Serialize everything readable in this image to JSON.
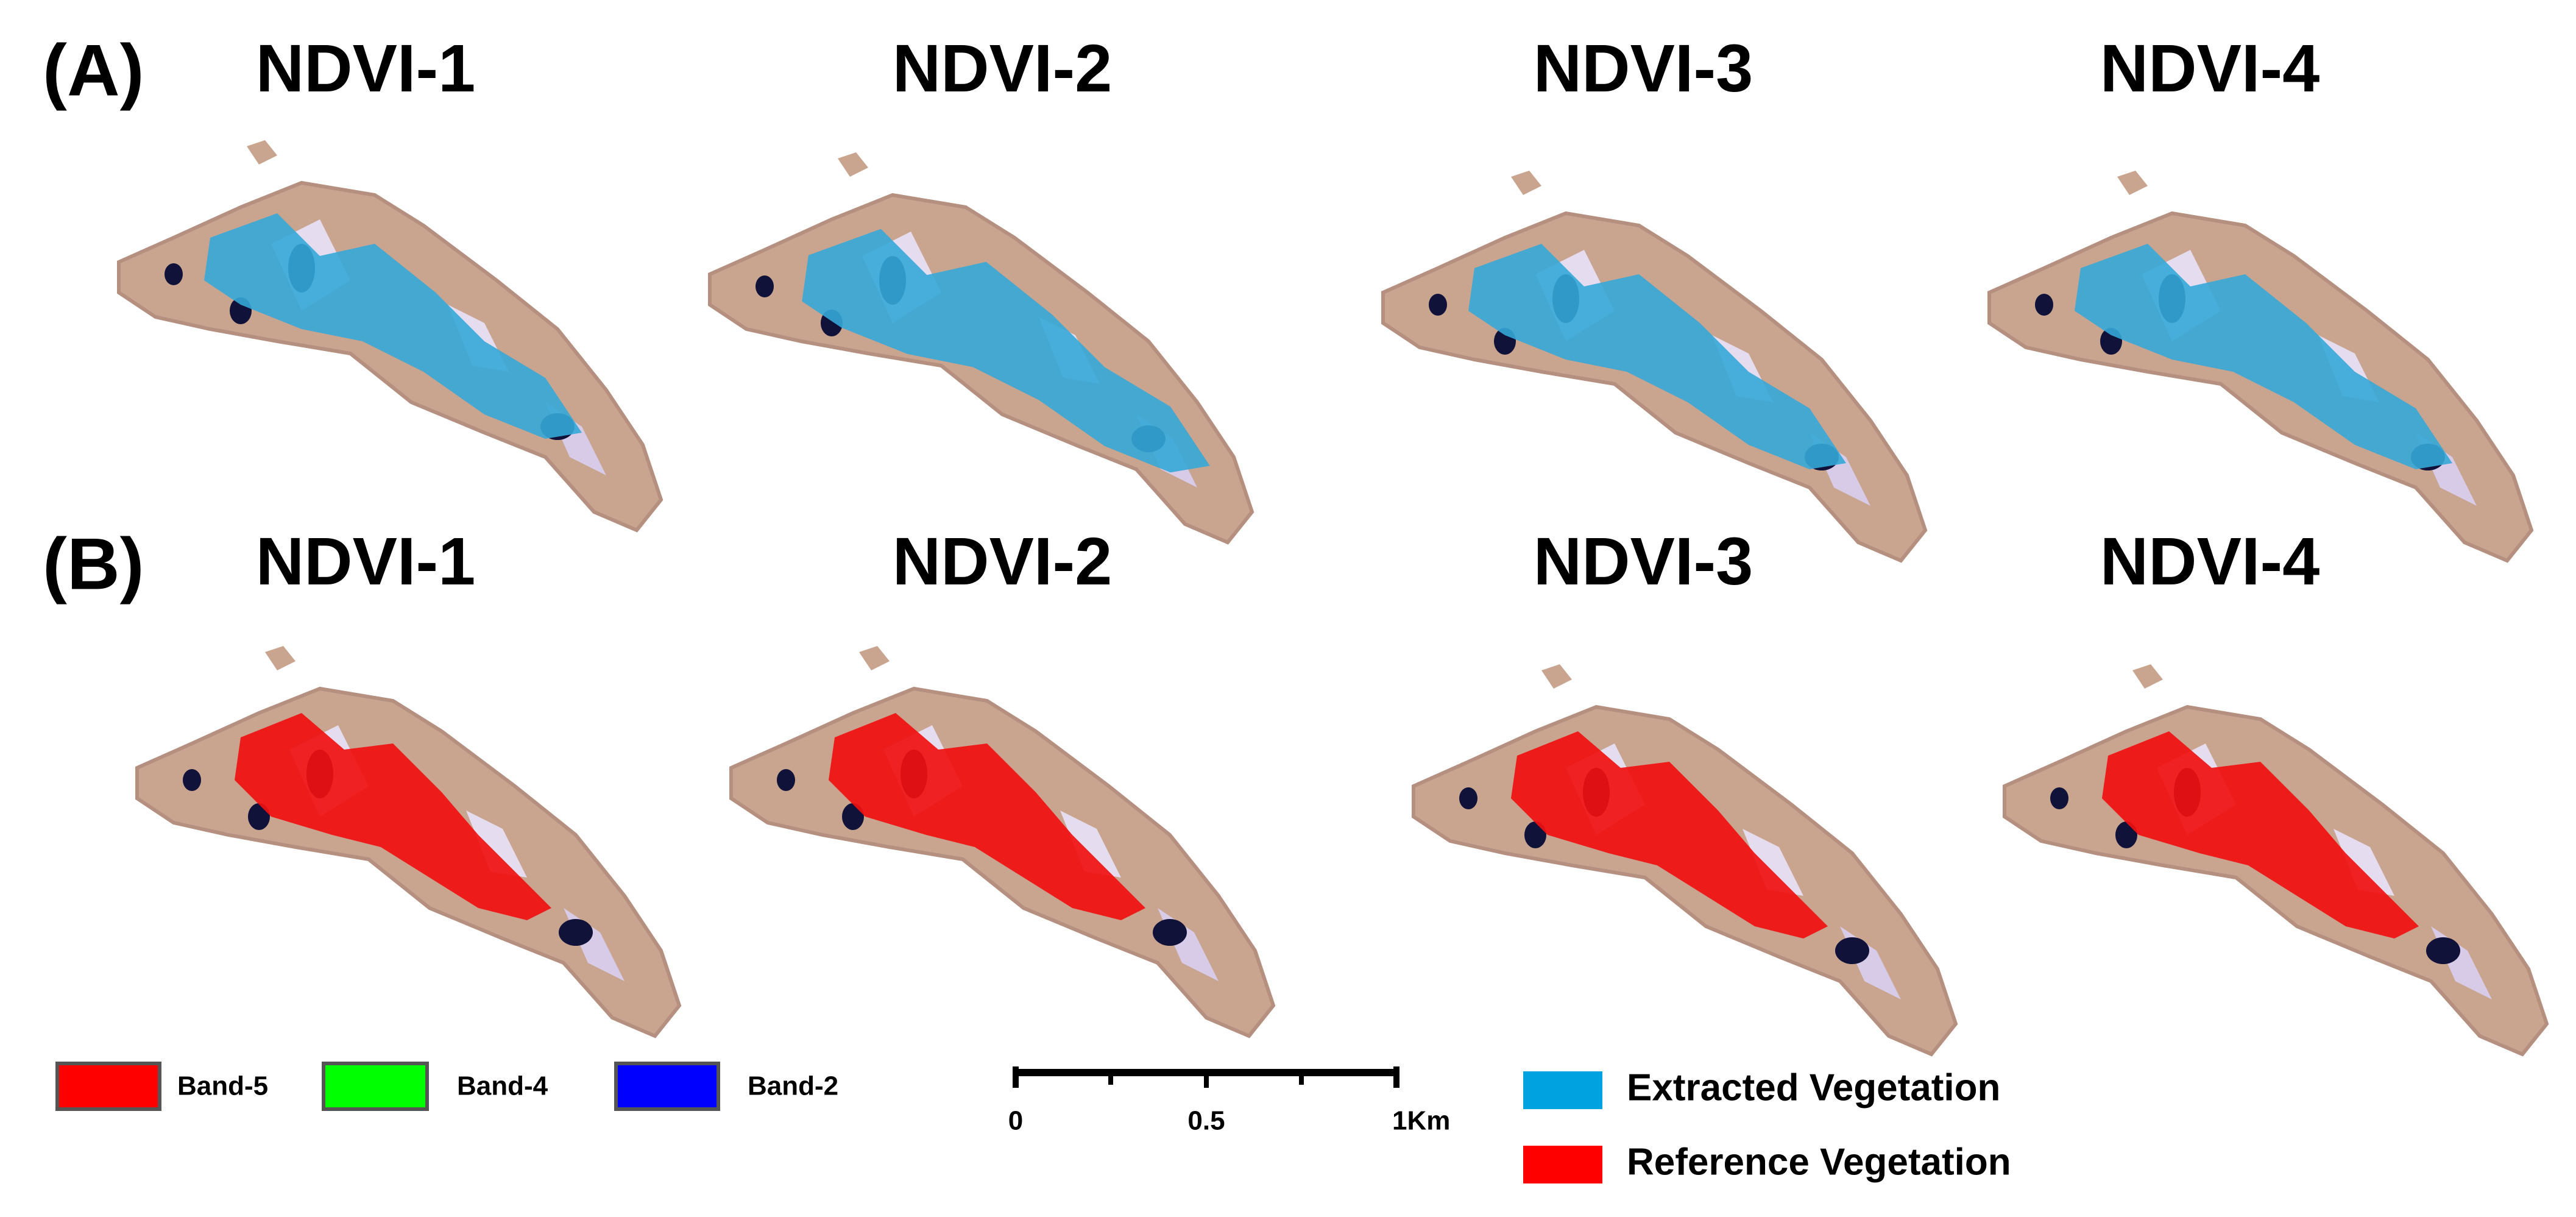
{
  "panels": [
    {
      "label": "(A)",
      "titles": [
        "NDVI-1",
        "NDVI-2",
        "NDVI-3",
        "NDVI-4"
      ]
    },
    {
      "label": "(B)",
      "titles": [
        "NDVI-1",
        "NDVI-2",
        "NDVI-3",
        "NDVI-4"
      ]
    }
  ],
  "legend": {
    "bands": [
      "Band-5",
      "Band-4",
      "Band-2"
    ],
    "scale_bar": [
      "0",
      "0.5",
      "1Km"
    ],
    "classes": [
      "Extracted Vegetation",
      "Reference Vegetation"
    ]
  }
}
